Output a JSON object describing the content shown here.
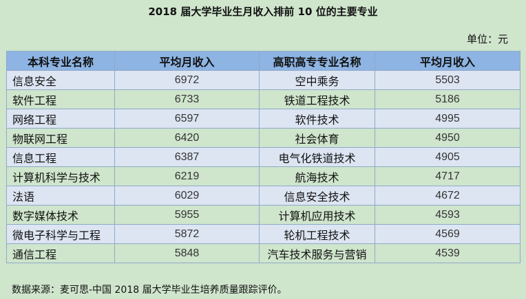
{
  "title": "2018 届大学毕业生月收入排前 10 位的主要专业",
  "unit": "单位：元",
  "headers": [
    "本科专业名称",
    "平均月收入",
    "高职高专专业名称",
    "平均月收入"
  ],
  "rows": [
    [
      "信息安全",
      "6972",
      "空中乘务",
      "5503"
    ],
    [
      "软件工程",
      "6733",
      "铁道工程技术",
      "5186"
    ],
    [
      "网络工程",
      "6597",
      "软件技术",
      "4995"
    ],
    [
      "物联网工程",
      "6420",
      "社会体育",
      "4950"
    ],
    [
      "信息工程",
      "6387",
      "电气化铁道技术",
      "4905"
    ],
    [
      "计算机科学与技术",
      "6219",
      "航海技术",
      "4717"
    ],
    [
      "法语",
      "6029",
      "信息安全技术",
      "4672"
    ],
    [
      "数字媒体技术",
      "5955",
      "计算机应用技术",
      "4593"
    ],
    [
      "微电子科学与工程",
      "5872",
      "轮机工程技术",
      "4569"
    ],
    [
      "通信工程",
      "5848",
      "汽车技术服务与营销",
      "4539"
    ]
  ],
  "source": "数据来源：麦可思-中国 2018 届大学毕业生培养质量跟踪评价。",
  "colors": {
    "background": "#cfe5cc",
    "header": "#8db4e2",
    "alt_row": "#dde5f2"
  }
}
